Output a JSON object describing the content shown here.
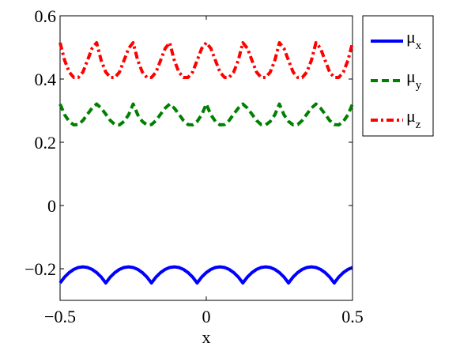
{
  "chart_data": {
    "type": "line",
    "xlabel": "x",
    "ylabel": "",
    "title": "",
    "xlim": [
      -0.5,
      0.5
    ],
    "ylim": [
      -0.3,
      0.6
    ],
    "xticks": [
      -0.5,
      0,
      0.5
    ],
    "xtick_labels": [
      "−0.5",
      "0",
      "0.5"
    ],
    "yticks": [
      -0.2,
      0,
      0.2,
      0.4,
      0.6
    ],
    "ytick_labels": [
      "−0.2",
      "0",
      "0.2",
      "0.4",
      "0.6"
    ],
    "grid": false,
    "legend_position": "outside-top-right",
    "x": [
      -0.5,
      -0.484375,
      -0.46875,
      -0.453125,
      -0.4375,
      -0.421875,
      -0.40625,
      -0.390625,
      -0.375,
      -0.359375,
      -0.34375,
      -0.328125,
      -0.3125,
      -0.296875,
      -0.28125,
      -0.265625,
      -0.25,
      -0.234375,
      -0.21875,
      -0.203125,
      -0.1875,
      -0.171875,
      -0.15625,
      -0.140625,
      -0.125,
      -0.109375,
      -0.09375,
      -0.078125,
      -0.0625,
      -0.046875,
      -0.03125,
      -0.015625,
      0,
      0.015625,
      0.03125,
      0.046875,
      0.0625,
      0.078125,
      0.09375,
      0.109375,
      0.125,
      0.140625,
      0.15625,
      0.171875,
      0.1875,
      0.203125,
      0.21875,
      0.234375,
      0.25,
      0.265625,
      0.28125,
      0.296875,
      0.3125,
      0.328125,
      0.34375,
      0.359375,
      0.375,
      0.390625,
      0.40625,
      0.421875,
      0.4375,
      0.453125,
      0.46875,
      0.484375,
      0.5
    ],
    "series": [
      {
        "name": "μx",
        "legend_main": "μ",
        "legend_sub": "x",
        "color": "#0000ff",
        "style": "solid",
        "values": [
          -0.245,
          -0.226,
          -0.212,
          -0.202,
          -0.196,
          -0.194,
          -0.196,
          -0.202,
          -0.212,
          -0.226,
          -0.245,
          -0.226,
          -0.212,
          -0.202,
          -0.196,
          -0.194,
          -0.196,
          -0.202,
          -0.212,
          -0.226,
          -0.245,
          -0.226,
          -0.212,
          -0.202,
          -0.196,
          -0.194,
          -0.196,
          -0.202,
          -0.212,
          -0.226,
          -0.245,
          -0.226,
          -0.212,
          -0.202,
          -0.196,
          -0.194,
          -0.196,
          -0.202,
          -0.212,
          -0.226,
          -0.245,
          -0.226,
          -0.212,
          -0.202,
          -0.196,
          -0.194,
          -0.196,
          -0.202,
          -0.212,
          -0.226,
          -0.245,
          -0.226,
          -0.212,
          -0.202,
          -0.196,
          -0.194,
          -0.196,
          -0.202,
          -0.212,
          -0.226,
          -0.245,
          -0.226,
          -0.212,
          -0.202,
          -0.196
        ]
      },
      {
        "name": "μy",
        "legend_main": "μ",
        "legend_sub": "y",
        "color": "#008000",
        "style": "dashed",
        "values": [
          0.321,
          0.287,
          0.266,
          0.255,
          0.256,
          0.269,
          0.289,
          0.308,
          0.321,
          0.308,
          0.289,
          0.269,
          0.256,
          0.255,
          0.266,
          0.287,
          0.321,
          0.287,
          0.266,
          0.255,
          0.256,
          0.269,
          0.289,
          0.308,
          0.321,
          0.308,
          0.289,
          0.269,
          0.256,
          0.255,
          0.266,
          0.287,
          0.321,
          0.287,
          0.266,
          0.255,
          0.256,
          0.269,
          0.289,
          0.308,
          0.321,
          0.308,
          0.289,
          0.269,
          0.256,
          0.255,
          0.266,
          0.287,
          0.321,
          0.287,
          0.266,
          0.255,
          0.256,
          0.269,
          0.289,
          0.308,
          0.321,
          0.308,
          0.289,
          0.269,
          0.256,
          0.255,
          0.266,
          0.287,
          0.321
        ]
      },
      {
        "name": "μz",
        "legend_main": "μ",
        "legend_sub": "z",
        "color": "#ff0000",
        "style": "dashdot",
        "values": [
          0.515,
          0.459,
          0.422,
          0.405,
          0.405,
          0.422,
          0.459,
          0.497,
          0.515,
          0.459,
          0.422,
          0.405,
          0.405,
          0.422,
          0.459,
          0.497,
          0.515,
          0.459,
          0.422,
          0.405,
          0.405,
          0.422,
          0.459,
          0.497,
          0.515,
          0.459,
          0.422,
          0.405,
          0.405,
          0.422,
          0.459,
          0.497,
          0.515,
          0.497,
          0.459,
          0.422,
          0.405,
          0.405,
          0.422,
          0.459,
          0.515,
          0.497,
          0.459,
          0.422,
          0.405,
          0.405,
          0.422,
          0.459,
          0.515,
          0.497,
          0.459,
          0.422,
          0.405,
          0.405,
          0.422,
          0.459,
          0.515,
          0.497,
          0.459,
          0.422,
          0.405,
          0.405,
          0.422,
          0.459,
          0.515
        ]
      }
    ]
  }
}
